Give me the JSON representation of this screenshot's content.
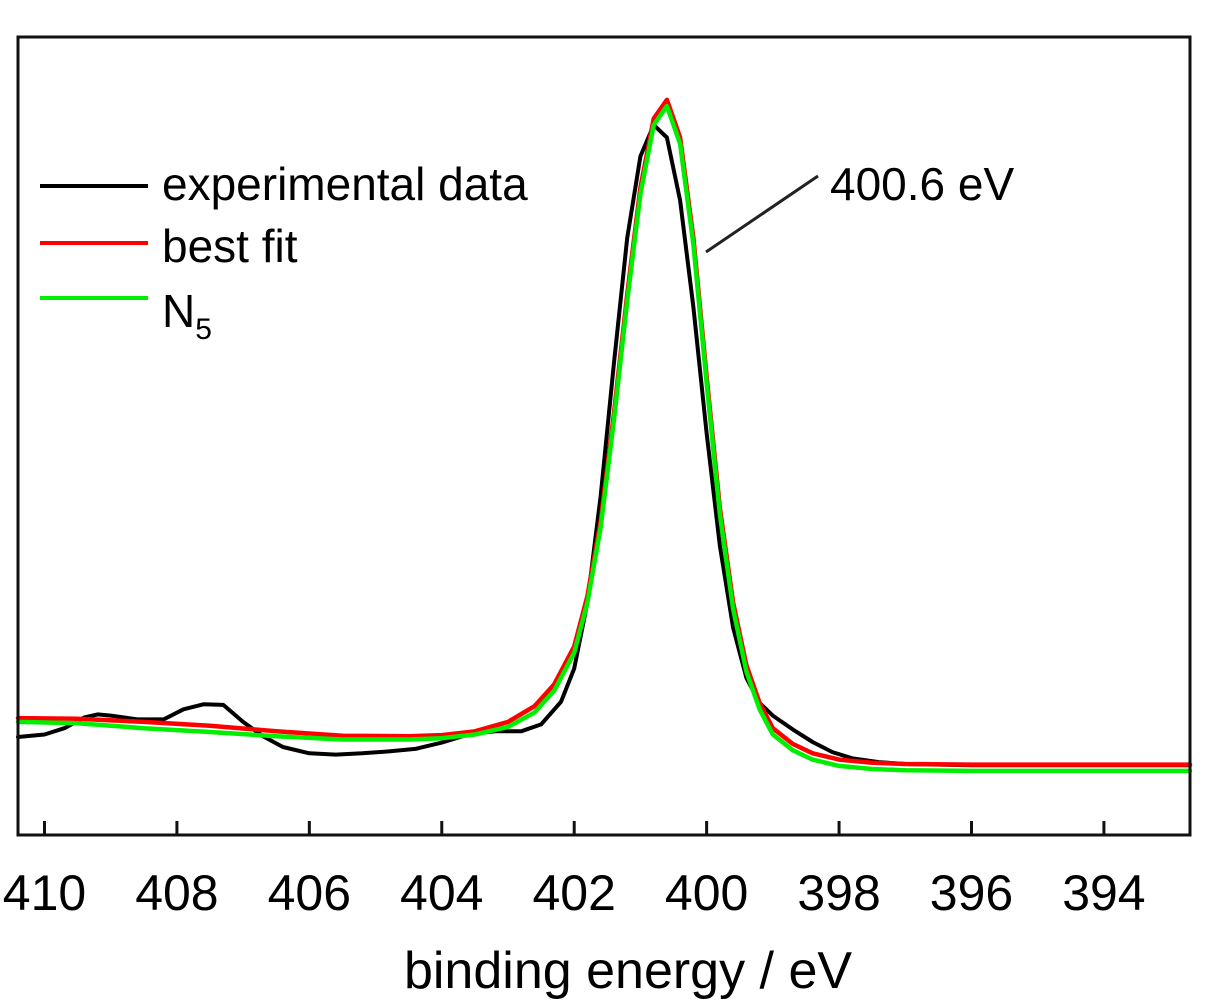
{
  "chart_data": {
    "type": "line",
    "title": "",
    "xlabel": "binding energy / eV",
    "ylabel": "",
    "x_reversed": true,
    "xlim": [
      410.4,
      392.7
    ],
    "ylim": [
      -0.07,
      1.2
    ],
    "x_ticks": [
      410,
      408,
      406,
      404,
      402,
      400,
      398,
      396,
      394
    ],
    "x_tick_labels": [
      "410",
      "408",
      "406",
      "404",
      "402",
      "400",
      "398",
      "396",
      "394"
    ],
    "y_ticks_shown": false,
    "grid": false,
    "legend": {
      "position": "top-left",
      "entries": [
        {
          "label": "experimental data",
          "color": "#000000"
        },
        {
          "label": "best fit",
          "color": "#ff0000"
        },
        {
          "label": "N",
          "subscript": "5",
          "color": "#00ee00"
        }
      ]
    },
    "annotation": {
      "text": "400.6 eV",
      "x": 400.6
    },
    "series": [
      {
        "name": "experimental data",
        "color": "#000000",
        "x": [
          410.4,
          410.0,
          409.7,
          409.4,
          409.2,
          409.0,
          408.6,
          408.2,
          407.9,
          407.6,
          407.3,
          407.0,
          406.7,
          406.4,
          406.0,
          405.6,
          405.2,
          404.8,
          404.4,
          404.0,
          403.6,
          403.2,
          402.8,
          402.5,
          402.2,
          402.0,
          401.8,
          401.6,
          401.4,
          401.2,
          401.0,
          400.8,
          400.6,
          400.4,
          400.2,
          400.0,
          399.8,
          399.6,
          399.4,
          399.2,
          399.0,
          398.7,
          398.4,
          398.1,
          397.8,
          397.4,
          397.0,
          396.0,
          395.0,
          394.0,
          392.7
        ],
        "y": [
          0.086,
          0.09,
          0.1,
          0.117,
          0.122,
          0.12,
          0.114,
          0.114,
          0.13,
          0.138,
          0.137,
          0.11,
          0.087,
          0.07,
          0.06,
          0.058,
          0.06,
          0.063,
          0.067,
          0.077,
          0.09,
          0.095,
          0.095,
          0.106,
          0.142,
          0.195,
          0.3,
          0.47,
          0.68,
          0.88,
          1.01,
          1.06,
          1.04,
          0.94,
          0.77,
          0.57,
          0.39,
          0.26,
          0.18,
          0.14,
          0.12,
          0.098,
          0.078,
          0.062,
          0.052,
          0.046,
          0.043,
          0.041,
          0.041,
          0.041,
          0.041
        ]
      },
      {
        "name": "best fit",
        "color": "#ff0000",
        "x": [
          410.4,
          409.5,
          408.5,
          407.5,
          406.5,
          405.5,
          404.5,
          404.0,
          403.5,
          403.0,
          402.6,
          402.3,
          402.0,
          401.8,
          401.6,
          401.4,
          401.2,
          401.0,
          400.8,
          400.6,
          400.4,
          400.2,
          400.0,
          399.8,
          399.6,
          399.4,
          399.2,
          399.0,
          398.7,
          398.4,
          398.0,
          397.5,
          397.0,
          396.0,
          395.0,
          394.0,
          392.7
        ],
        "y": [
          0.116,
          0.115,
          0.11,
          0.104,
          0.095,
          0.088,
          0.087,
          0.089,
          0.095,
          0.11,
          0.135,
          0.17,
          0.23,
          0.31,
          0.43,
          0.6,
          0.79,
          0.96,
          1.07,
          1.1,
          1.04,
          0.88,
          0.66,
          0.45,
          0.3,
          0.2,
          0.14,
          0.1,
          0.075,
          0.06,
          0.05,
          0.045,
          0.043,
          0.042,
          0.042,
          0.042,
          0.042
        ]
      },
      {
        "name": "N5",
        "color": "#00ee00",
        "x": [
          410.4,
          409.5,
          408.5,
          407.5,
          406.5,
          405.5,
          404.5,
          404.0,
          403.5,
          403.0,
          402.6,
          402.3,
          402.0,
          401.8,
          401.6,
          401.4,
          401.2,
          401.0,
          400.8,
          400.6,
          400.4,
          400.2,
          400.0,
          399.8,
          399.6,
          399.4,
          399.2,
          399.0,
          398.7,
          398.4,
          398.0,
          397.5,
          397.0,
          396.0,
          395.0,
          394.0,
          392.7
        ],
        "y": [
          0.11,
          0.108,
          0.1,
          0.094,
          0.087,
          0.082,
          0.082,
          0.084,
          0.09,
          0.102,
          0.125,
          0.16,
          0.22,
          0.3,
          0.42,
          0.59,
          0.78,
          0.95,
          1.06,
          1.09,
          1.03,
          0.87,
          0.65,
          0.44,
          0.29,
          0.19,
          0.13,
          0.09,
          0.065,
          0.05,
          0.04,
          0.035,
          0.033,
          0.032,
          0.032,
          0.032,
          0.032
        ]
      }
    ]
  }
}
